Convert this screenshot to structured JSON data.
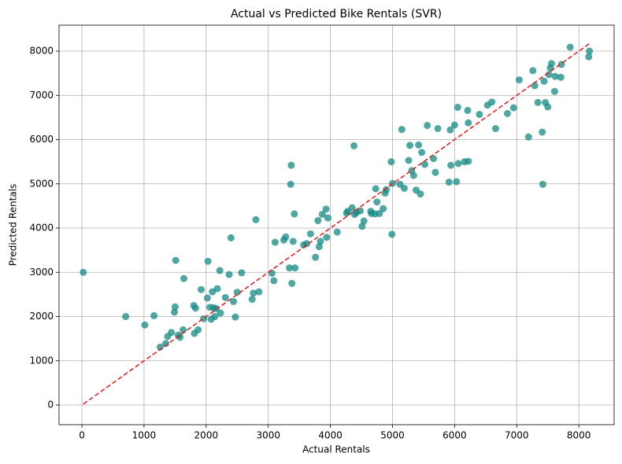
{
  "chart_data": {
    "type": "scatter",
    "title": "Actual vs Predicted Bike Rentals (SVR)",
    "x_label": "Actual Rentals",
    "y_label": "Predicted Rentals",
    "xlim": [
      -368,
      8568
    ],
    "ylim": [
      -444,
      8587
    ],
    "xticks": [
      0,
      1000,
      2000,
      3000,
      4000,
      5000,
      6000,
      7000,
      8000
    ],
    "yticks": [
      0,
      1000,
      2000,
      3000,
      4000,
      5000,
      6000,
      7000,
      8000
    ],
    "grid": true,
    "series": [
      {
        "type": "scatter",
        "color": "#138a82",
        "x": [
          22,
          705,
          1013,
          1160,
          1260,
          1350,
          1380,
          1440,
          1490,
          1500,
          1510,
          1550,
          1580,
          1630,
          1640,
          1800,
          1810,
          1830,
          1870,
          1920,
          1960,
          2020,
          2030,
          2060,
          2080,
          2100,
          2120,
          2140,
          2160,
          2180,
          2220,
          2230,
          2310,
          2370,
          2400,
          2440,
          2470,
          2500,
          2570,
          2740,
          2760,
          2800,
          2850,
          3060,
          3090,
          3110,
          3250,
          3280,
          3340,
          3360,
          3370,
          3380,
          3400,
          3420,
          3430,
          3570,
          3620,
          3680,
          3760,
          3800,
          3820,
          3840,
          3870,
          3930,
          3940,
          3960,
          4110,
          4260,
          4280,
          4350,
          4380,
          4390,
          4420,
          4480,
          4510,
          4540,
          4650,
          4660,
          4720,
          4730,
          4750,
          4790,
          4850,
          4880,
          4900,
          4980,
          4990,
          5000,
          5120,
          5150,
          5190,
          5260,
          5280,
          5310,
          5340,
          5380,
          5420,
          5450,
          5470,
          5520,
          5560,
          5660,
          5690,
          5730,
          5910,
          5930,
          5940,
          6000,
          6030,
          6050,
          6060,
          6160,
          6210,
          6220,
          6220,
          6400,
          6530,
          6600,
          6660,
          6850,
          6950,
          7040,
          7190,
          7260,
          7290,
          7340,
          7410,
          7420,
          7440,
          7460,
          7500,
          7520,
          7540,
          7560,
          7610,
          7620,
          7710,
          7720,
          7860,
          8160,
          8170
        ],
        "values": [
          3000,
          2000,
          1810,
          2020,
          1310,
          1390,
          1550,
          1640,
          2100,
          2220,
          3270,
          1580,
          1530,
          1700,
          2860,
          2250,
          1620,
          2190,
          1700,
          2610,
          1950,
          2420,
          3250,
          2210,
          1940,
          2560,
          2200,
          2000,
          2180,
          2630,
          3040,
          2080,
          2430,
          2950,
          3780,
          2340,
          1990,
          2550,
          2990,
          2390,
          2530,
          4190,
          2560,
          2980,
          2810,
          3680,
          3730,
          3800,
          3100,
          4990,
          5420,
          2750,
          3700,
          4320,
          3100,
          3620,
          3650,
          3870,
          3340,
          4170,
          3580,
          3700,
          4310,
          4430,
          3790,
          4230,
          3910,
          4340,
          4380,
          4460,
          5860,
          4310,
          4350,
          4390,
          4040,
          4160,
          4380,
          4330,
          4320,
          4890,
          4590,
          4330,
          4440,
          4790,
          4870,
          5500,
          3860,
          5010,
          4990,
          6230,
          4900,
          5530,
          5870,
          5300,
          5190,
          4860,
          5880,
          4770,
          5710,
          5440,
          6320,
          5570,
          5260,
          6250,
          5040,
          6220,
          5420,
          6330,
          5050,
          6730,
          5460,
          5500,
          6660,
          5510,
          6380,
          6570,
          6780,
          6850,
          6250,
          6590,
          6720,
          7350,
          6060,
          7560,
          7220,
          6840,
          6170,
          4990,
          7320,
          6840,
          6740,
          7470,
          7620,
          7720,
          7090,
          7430,
          7410,
          7700,
          8090,
          7870,
          8000
        ]
      },
      {
        "type": "line",
        "color": "#e8191b",
        "dashed": true,
        "x": [
          22,
          8170
        ],
        "values": [
          22,
          8170
        ]
      }
    ]
  }
}
